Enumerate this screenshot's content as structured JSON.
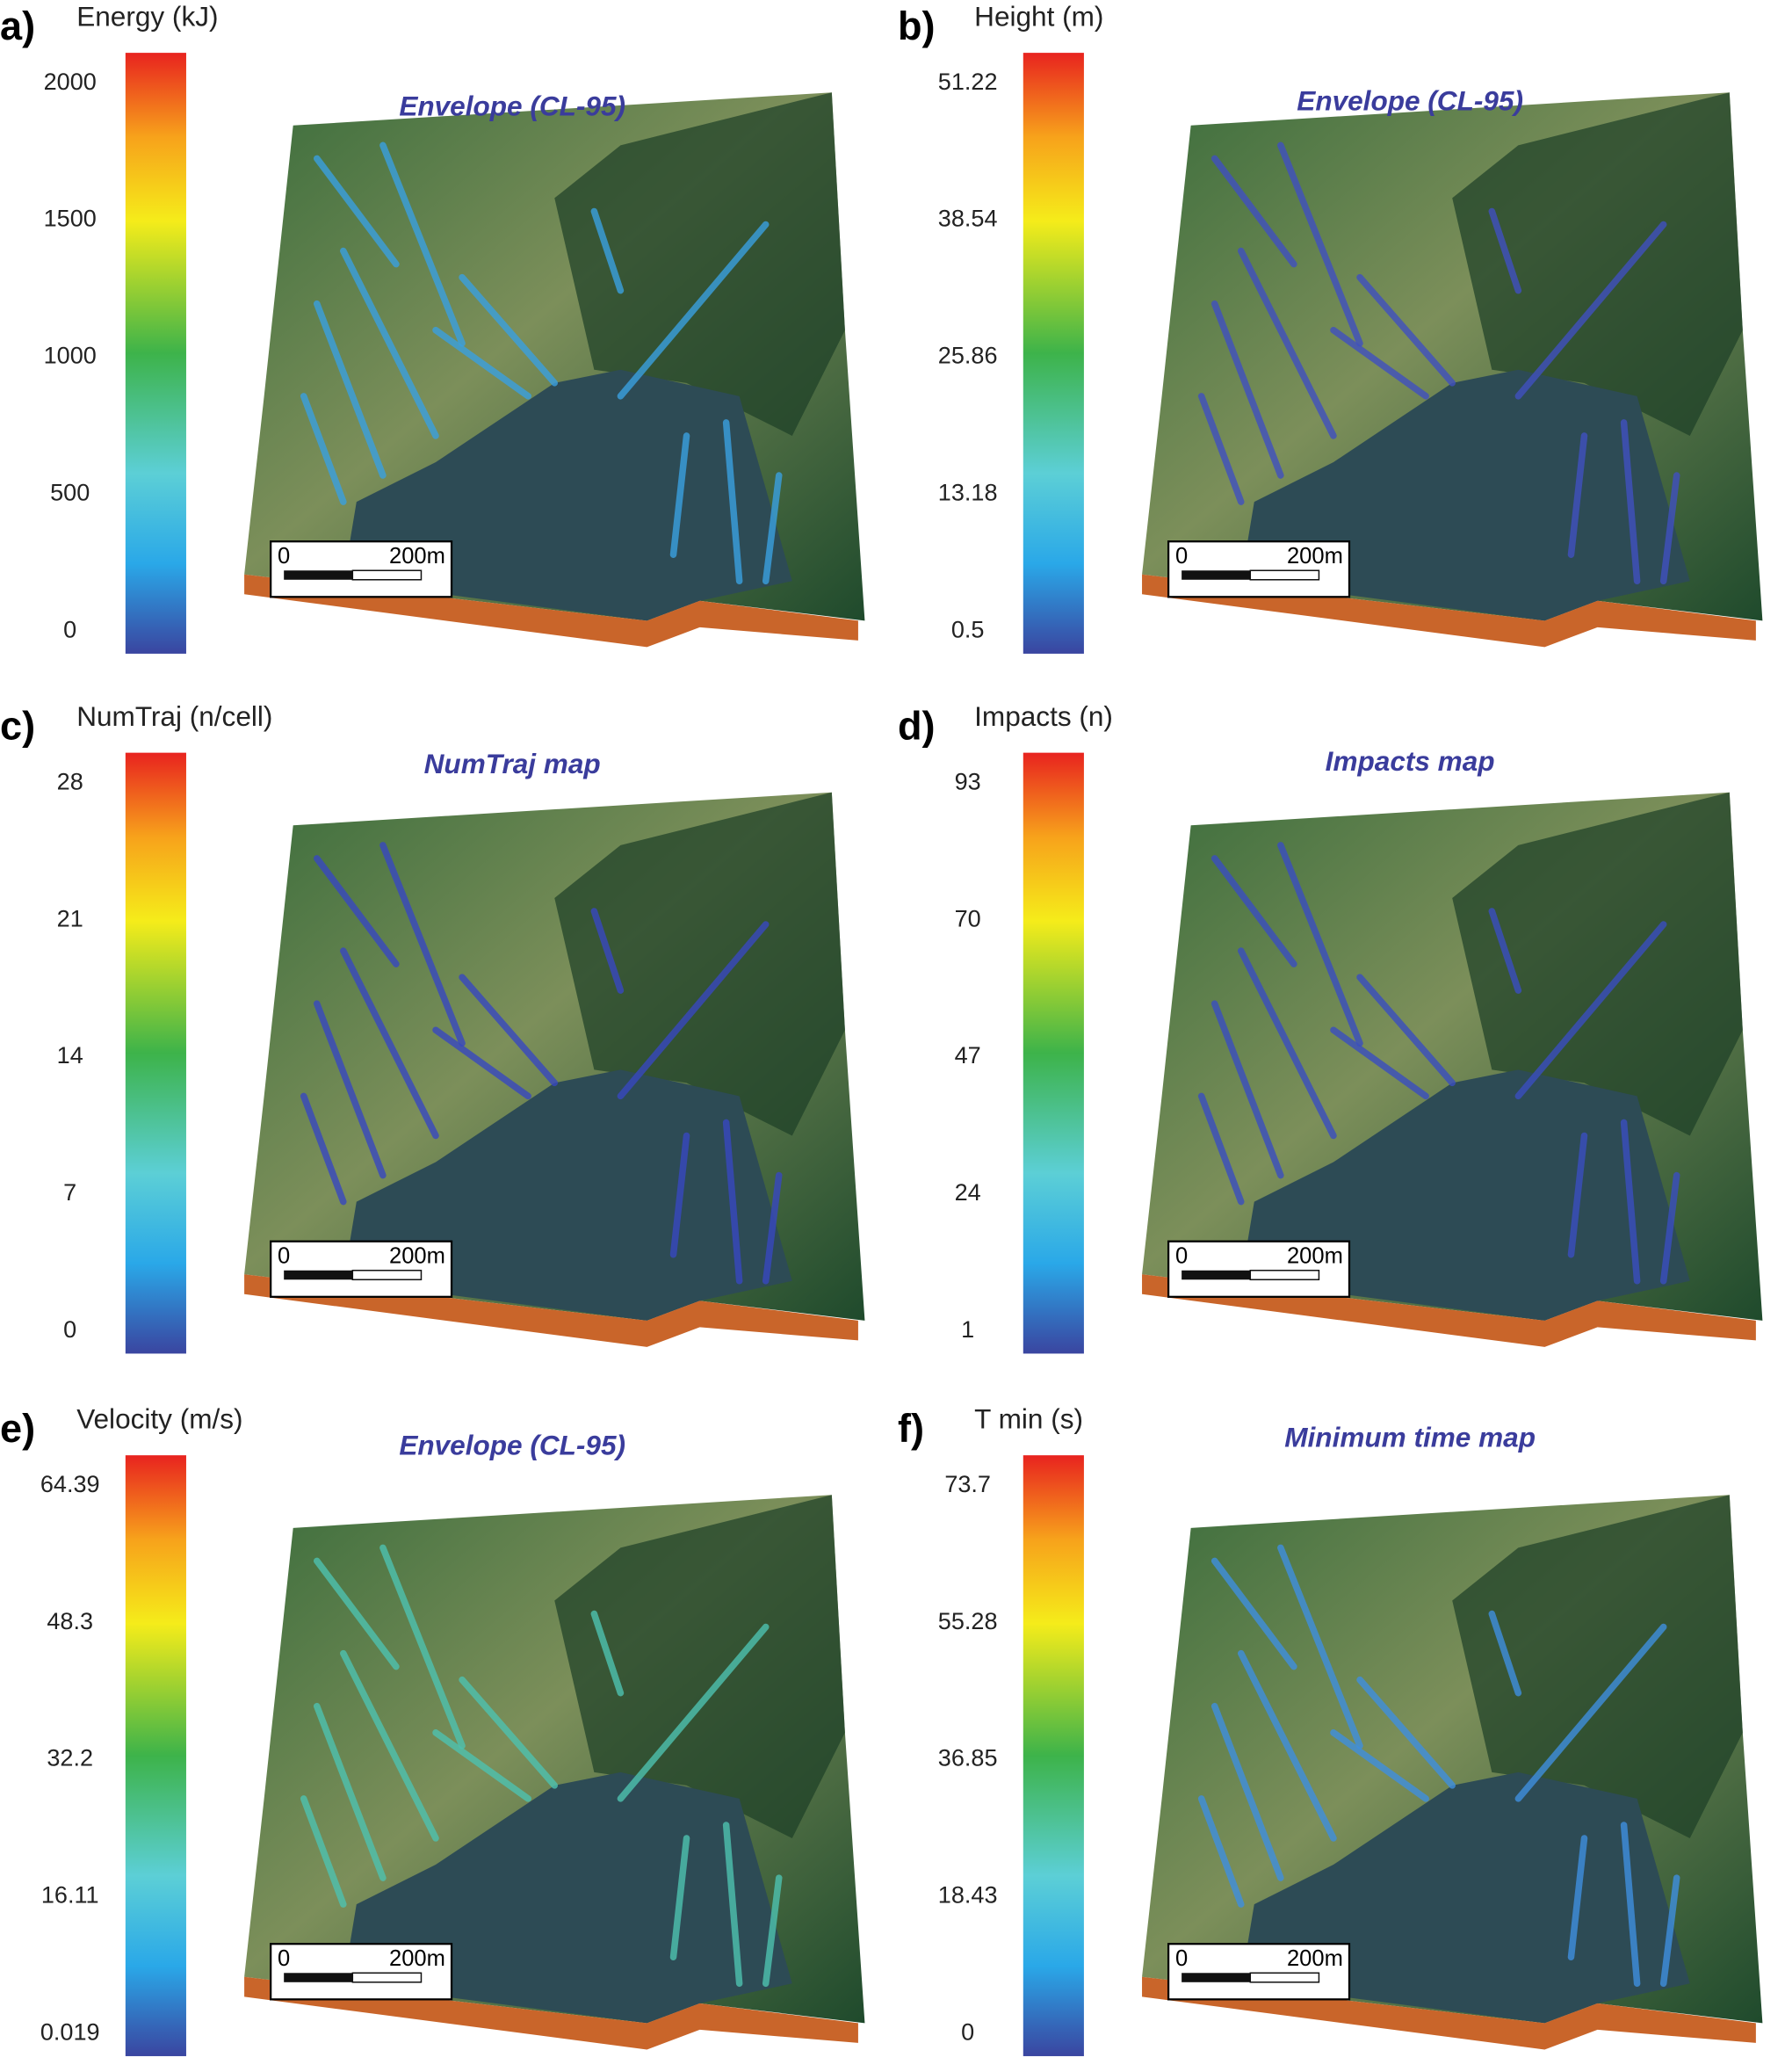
{
  "panels": [
    {
      "label": "a)",
      "colorbar_title": "Energy (kJ)",
      "ticks": [
        0,
        500,
        1000,
        1500,
        2000
      ],
      "map_title": "Envelope (CL-95)",
      "scale": [
        "0",
        "200m"
      ]
    },
    {
      "label": "b)",
      "colorbar_title": "Height (m)",
      "ticks": [
        0.5,
        13.18,
        25.86,
        38.54,
        51.22
      ],
      "map_title": "Envelope (CL-95)",
      "scale": [
        "0",
        "200m"
      ]
    },
    {
      "label": "c)",
      "colorbar_title": "NumTraj (n/cell)",
      "ticks": [
        0,
        7,
        14,
        21,
        28
      ],
      "map_title": "NumTraj map",
      "scale": [
        "0",
        "200m"
      ]
    },
    {
      "label": "d)",
      "colorbar_title": "Impacts (n)",
      "ticks": [
        1,
        24,
        47,
        70,
        93
      ],
      "map_title": "Impacts map",
      "scale": [
        "0",
        "200m"
      ]
    },
    {
      "label": "e)",
      "colorbar_title": "Velocity (m/s)",
      "ticks": [
        0.019,
        16.11,
        32.2,
        48.3,
        64.39
      ],
      "map_title": "Envelope (CL-95)",
      "scale": [
        "0",
        "200m"
      ]
    },
    {
      "label": "f)",
      "colorbar_title": "T min (s)",
      "ticks": [
        0,
        18.43,
        36.85,
        55.28,
        73.7
      ],
      "map_title": "Minimum time map",
      "scale": [
        "0",
        "200m"
      ]
    }
  ]
}
